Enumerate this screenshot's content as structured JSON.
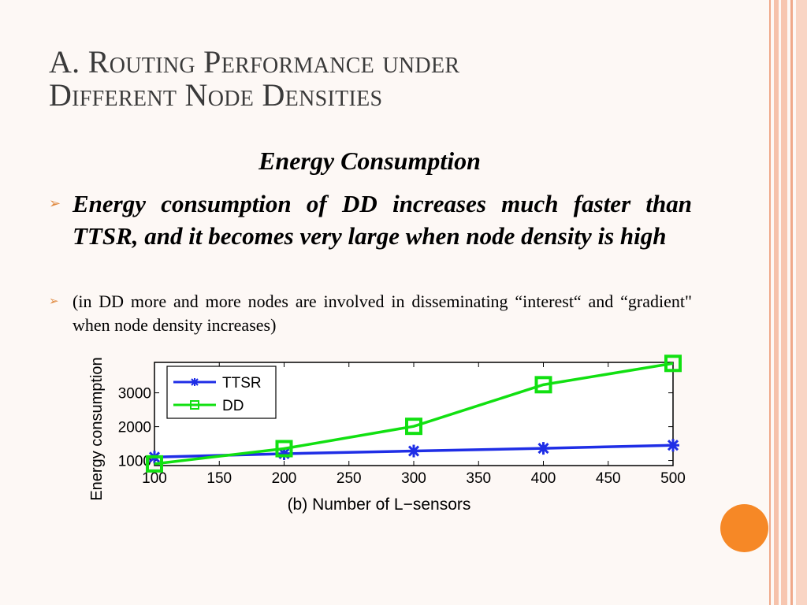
{
  "slide": {
    "title_line1": "A. Routing Performance under",
    "title_line2": "Different Node Densities",
    "subheading": "Energy Consumption",
    "bullets": [
      {
        "arrow": "➢",
        "text": "Energy consumption of DD increases much faster than TTSR, and it becomes very large when node density is high"
      },
      {
        "arrow": "➢",
        "text": "(in DD more and more nodes are involved in disseminating “interest“ and “gradient\" when node density increases)"
      }
    ]
  },
  "colors": {
    "title": "#3a3a3a",
    "accent_orange": "#f68826",
    "ttsr": "#1f2ee6",
    "dd": "#11e011"
  },
  "chart_data": {
    "type": "line",
    "xlabel": "(b) Number of L−sensors",
    "ylabel": "Energy consumption",
    "xlim": [
      100,
      500
    ],
    "ylim": [
      850,
      3900
    ],
    "xticks": [
      100,
      150,
      200,
      250,
      300,
      350,
      400,
      450,
      500
    ],
    "yticks": [
      1000,
      2000,
      3000
    ],
    "x": [
      100,
      200,
      300,
      400,
      500
    ],
    "series": [
      {
        "name": "TTSR",
        "values": [
          1100,
          1200,
          1280,
          1360,
          1450
        ],
        "marker": "asterisk",
        "color": "#1f2ee6"
      },
      {
        "name": "DD",
        "values": [
          900,
          1350,
          2010,
          3240,
          3870
        ],
        "marker": "square",
        "color": "#11e011"
      }
    ],
    "legend_position": "top-left",
    "grid": false
  }
}
